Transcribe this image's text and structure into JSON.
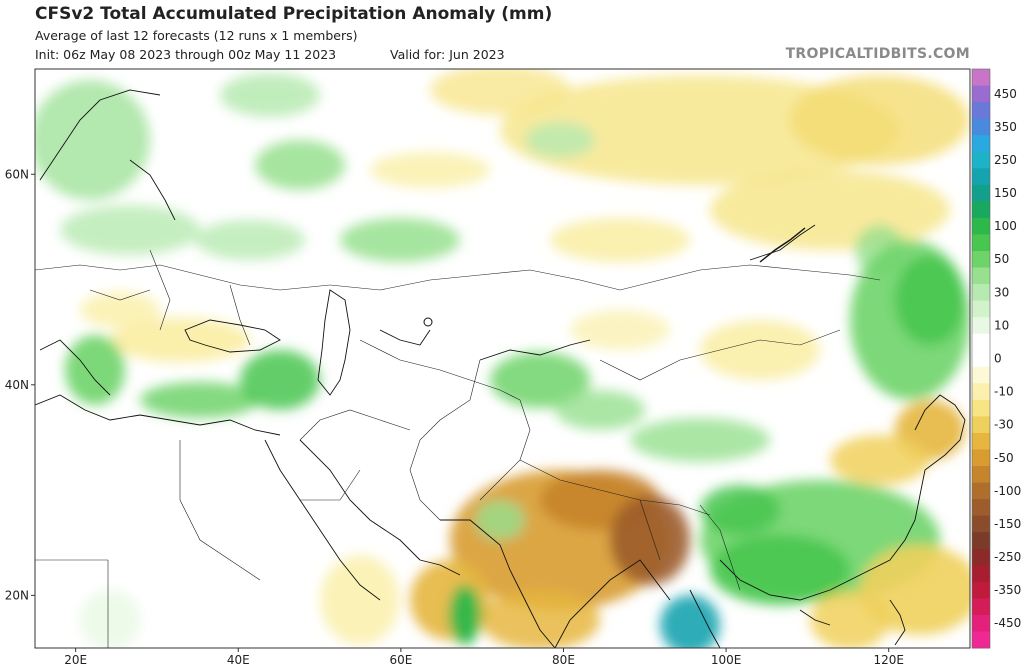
{
  "header": {
    "title": "CFSv2 Total Accumulated Precipitation Anomaly (mm)",
    "subtitle": "Average of last 12 forecasts (12 runs x 1 members)",
    "init": "Init: 06z May 08 2023 through 00z May 11 2023",
    "valid": "Valid for: Jun 2023",
    "credit": "TROPICALTIDBITS.COM"
  },
  "map": {
    "lon_range": [
      15,
      130
    ],
    "lat_range": [
      15,
      70
    ],
    "lat_labels": [
      {
        "lat": 60,
        "label": "60N"
      },
      {
        "lat": 40,
        "label": "40N"
      },
      {
        "lat": 20,
        "label": "20N"
      }
    ],
    "lon_labels": [
      {
        "lon": 20,
        "label": "20E"
      },
      {
        "lon": 40,
        "label": "40E"
      },
      {
        "lon": 60,
        "label": "60E"
      },
      {
        "lon": 80,
        "label": "80E"
      },
      {
        "lon": 100,
        "label": "100E"
      },
      {
        "lon": 120,
        "label": "120E"
      }
    ]
  },
  "colorbar": {
    "levels": [
      {
        "label": "",
        "color": "#c875c8"
      },
      {
        "label": "450",
        "color": "#9a6bd0"
      },
      {
        "label": "",
        "color": "#6a78d8"
      },
      {
        "label": "350",
        "color": "#4a8ade"
      },
      {
        "label": "",
        "color": "#2aa8e0"
      },
      {
        "label": "250",
        "color": "#1cb2c8"
      },
      {
        "label": "",
        "color": "#14a4b0"
      },
      {
        "label": "150",
        "color": "#12a08c"
      },
      {
        "label": "",
        "color": "#18a85e"
      },
      {
        "label": "100",
        "color": "#2cb84a"
      },
      {
        "label": "",
        "color": "#48c650"
      },
      {
        "label": "50",
        "color": "#6ed46a"
      },
      {
        "label": "",
        "color": "#96e08e"
      },
      {
        "label": "30",
        "color": "#b6eab0"
      },
      {
        "label": "",
        "color": "#d2f2cc"
      },
      {
        "label": "10",
        "color": "#e8f8e4"
      },
      {
        "label": "",
        "color": "#ffffff"
      },
      {
        "label": "0",
        "color": "#ffffff"
      },
      {
        "label": "",
        "color": "#fdf8d6"
      },
      {
        "label": "-10",
        "color": "#fbf0ae"
      },
      {
        "label": "",
        "color": "#f7e484"
      },
      {
        "label": "-30",
        "color": "#f0d05c"
      },
      {
        "label": "",
        "color": "#e6b63e"
      },
      {
        "label": "-50",
        "color": "#d89c30"
      },
      {
        "label": "",
        "color": "#c6842c"
      },
      {
        "label": "-100",
        "color": "#b06e2c"
      },
      {
        "label": "",
        "color": "#9c5c2c"
      },
      {
        "label": "-150",
        "color": "#8a4c2a"
      },
      {
        "label": "",
        "color": "#7a3c28"
      },
      {
        "label": "-250",
        "color": "#8c2a2a"
      },
      {
        "label": "",
        "color": "#a81e30"
      },
      {
        "label": "-350",
        "color": "#c01a3c"
      },
      {
        "label": "",
        "color": "#d41c58"
      },
      {
        "label": "-450",
        "color": "#e4207a"
      },
      {
        "label": "",
        "color": "#f02896"
      }
    ]
  }
}
